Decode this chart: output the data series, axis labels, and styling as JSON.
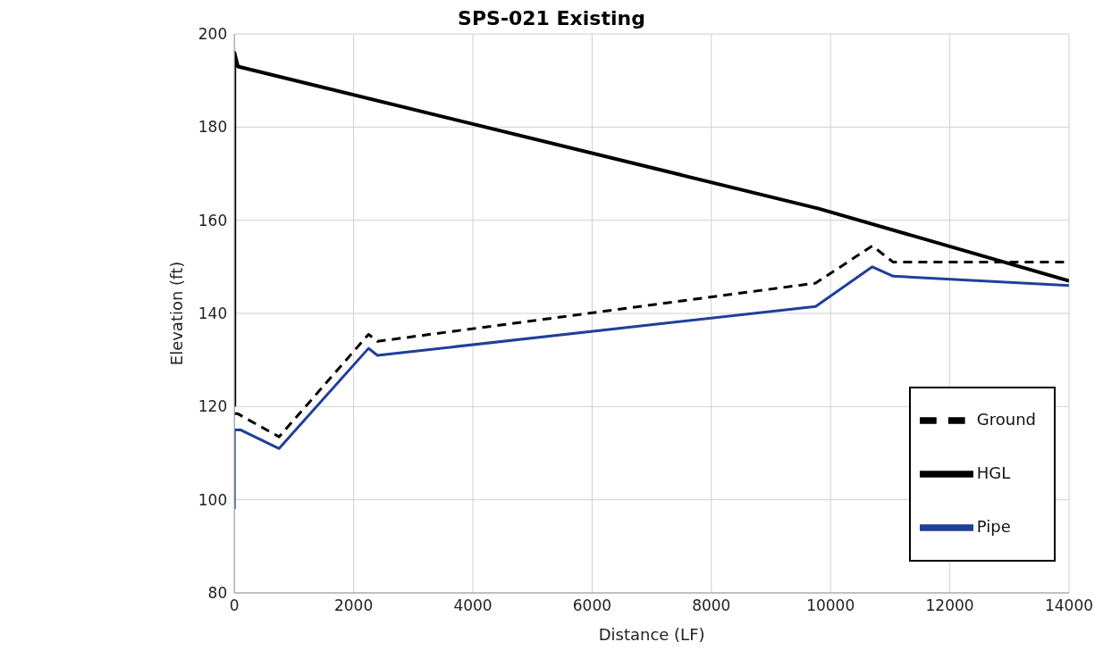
{
  "chart_data": {
    "type": "line",
    "title": "SPS-021 Existing",
    "xlabel": "Distance (LF)",
    "ylabel": "Elevation (ft)",
    "xlim": [
      0,
      14000
    ],
    "xticks": [
      0,
      2000,
      4000,
      6000,
      8000,
      10000,
      12000,
      14000
    ],
    "ylim": [
      80,
      200
    ],
    "yticks": [
      80,
      100,
      120,
      140,
      160,
      180,
      200
    ],
    "grid": true,
    "legend": "bottom right",
    "marker": "none",
    "series": [
      {
        "name": "Ground",
        "color": "#000000",
        "line_style": "dashed",
        "x": [
          0,
          50,
          750,
          2250,
          2400,
          9750,
          10700,
          11050,
          14000
        ],
        "values": [
          118.5,
          118.5,
          113.5,
          135.5,
          134,
          146.5,
          154.5,
          151,
          151
        ]
      },
      {
        "name": "HGL",
        "color": "#000000",
        "line_style": "solid",
        "x": [
          0,
          0,
          60,
          9800,
          14000
        ],
        "values": [
          120,
          196,
          193,
          162.5,
          147
        ]
      },
      {
        "name": "Pipe",
        "color": "#1f3f99",
        "line_style": "solid",
        "x": [
          0,
          0,
          100,
          750,
          2250,
          2400,
          9750,
          10700,
          11050,
          14000
        ],
        "values": [
          98,
          115,
          115,
          111,
          132.5,
          131,
          141.5,
          150,
          148,
          146
        ]
      }
    ]
  }
}
